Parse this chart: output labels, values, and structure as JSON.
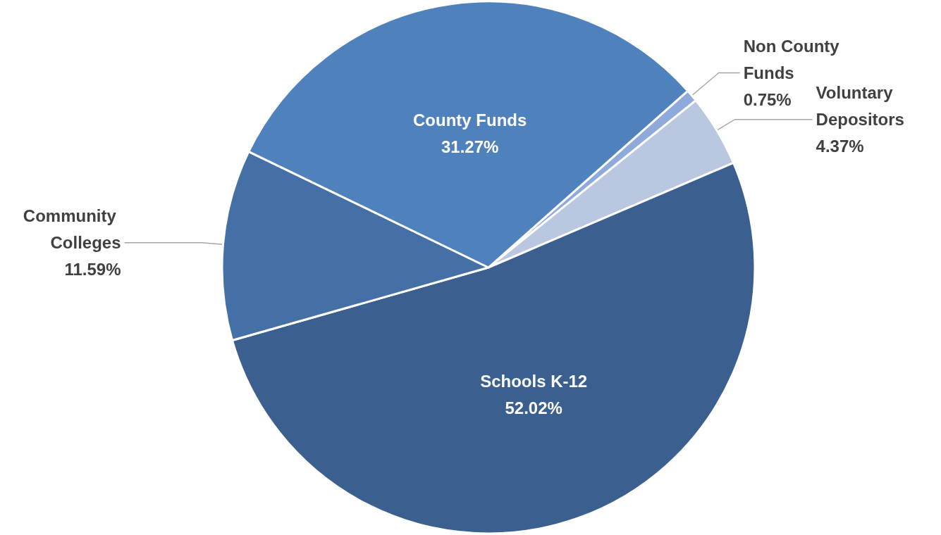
{
  "chart_data": {
    "type": "pie",
    "categories": [
      "Non County Funds",
      "Voluntary Depositors",
      "Schools K-12",
      "Community Colleges",
      "County Funds"
    ],
    "values": [
      0.75,
      4.37,
      52.02,
      11.59,
      31.27
    ],
    "colors": [
      "#8eaadb",
      "#b9c7e0",
      "#3b5f8e",
      "#4570a5",
      "#4f81bd"
    ],
    "value_labels": [
      "0.75%",
      "4.37%",
      "52.02%",
      "11.59%",
      "31.27%"
    ],
    "legend": false
  }
}
